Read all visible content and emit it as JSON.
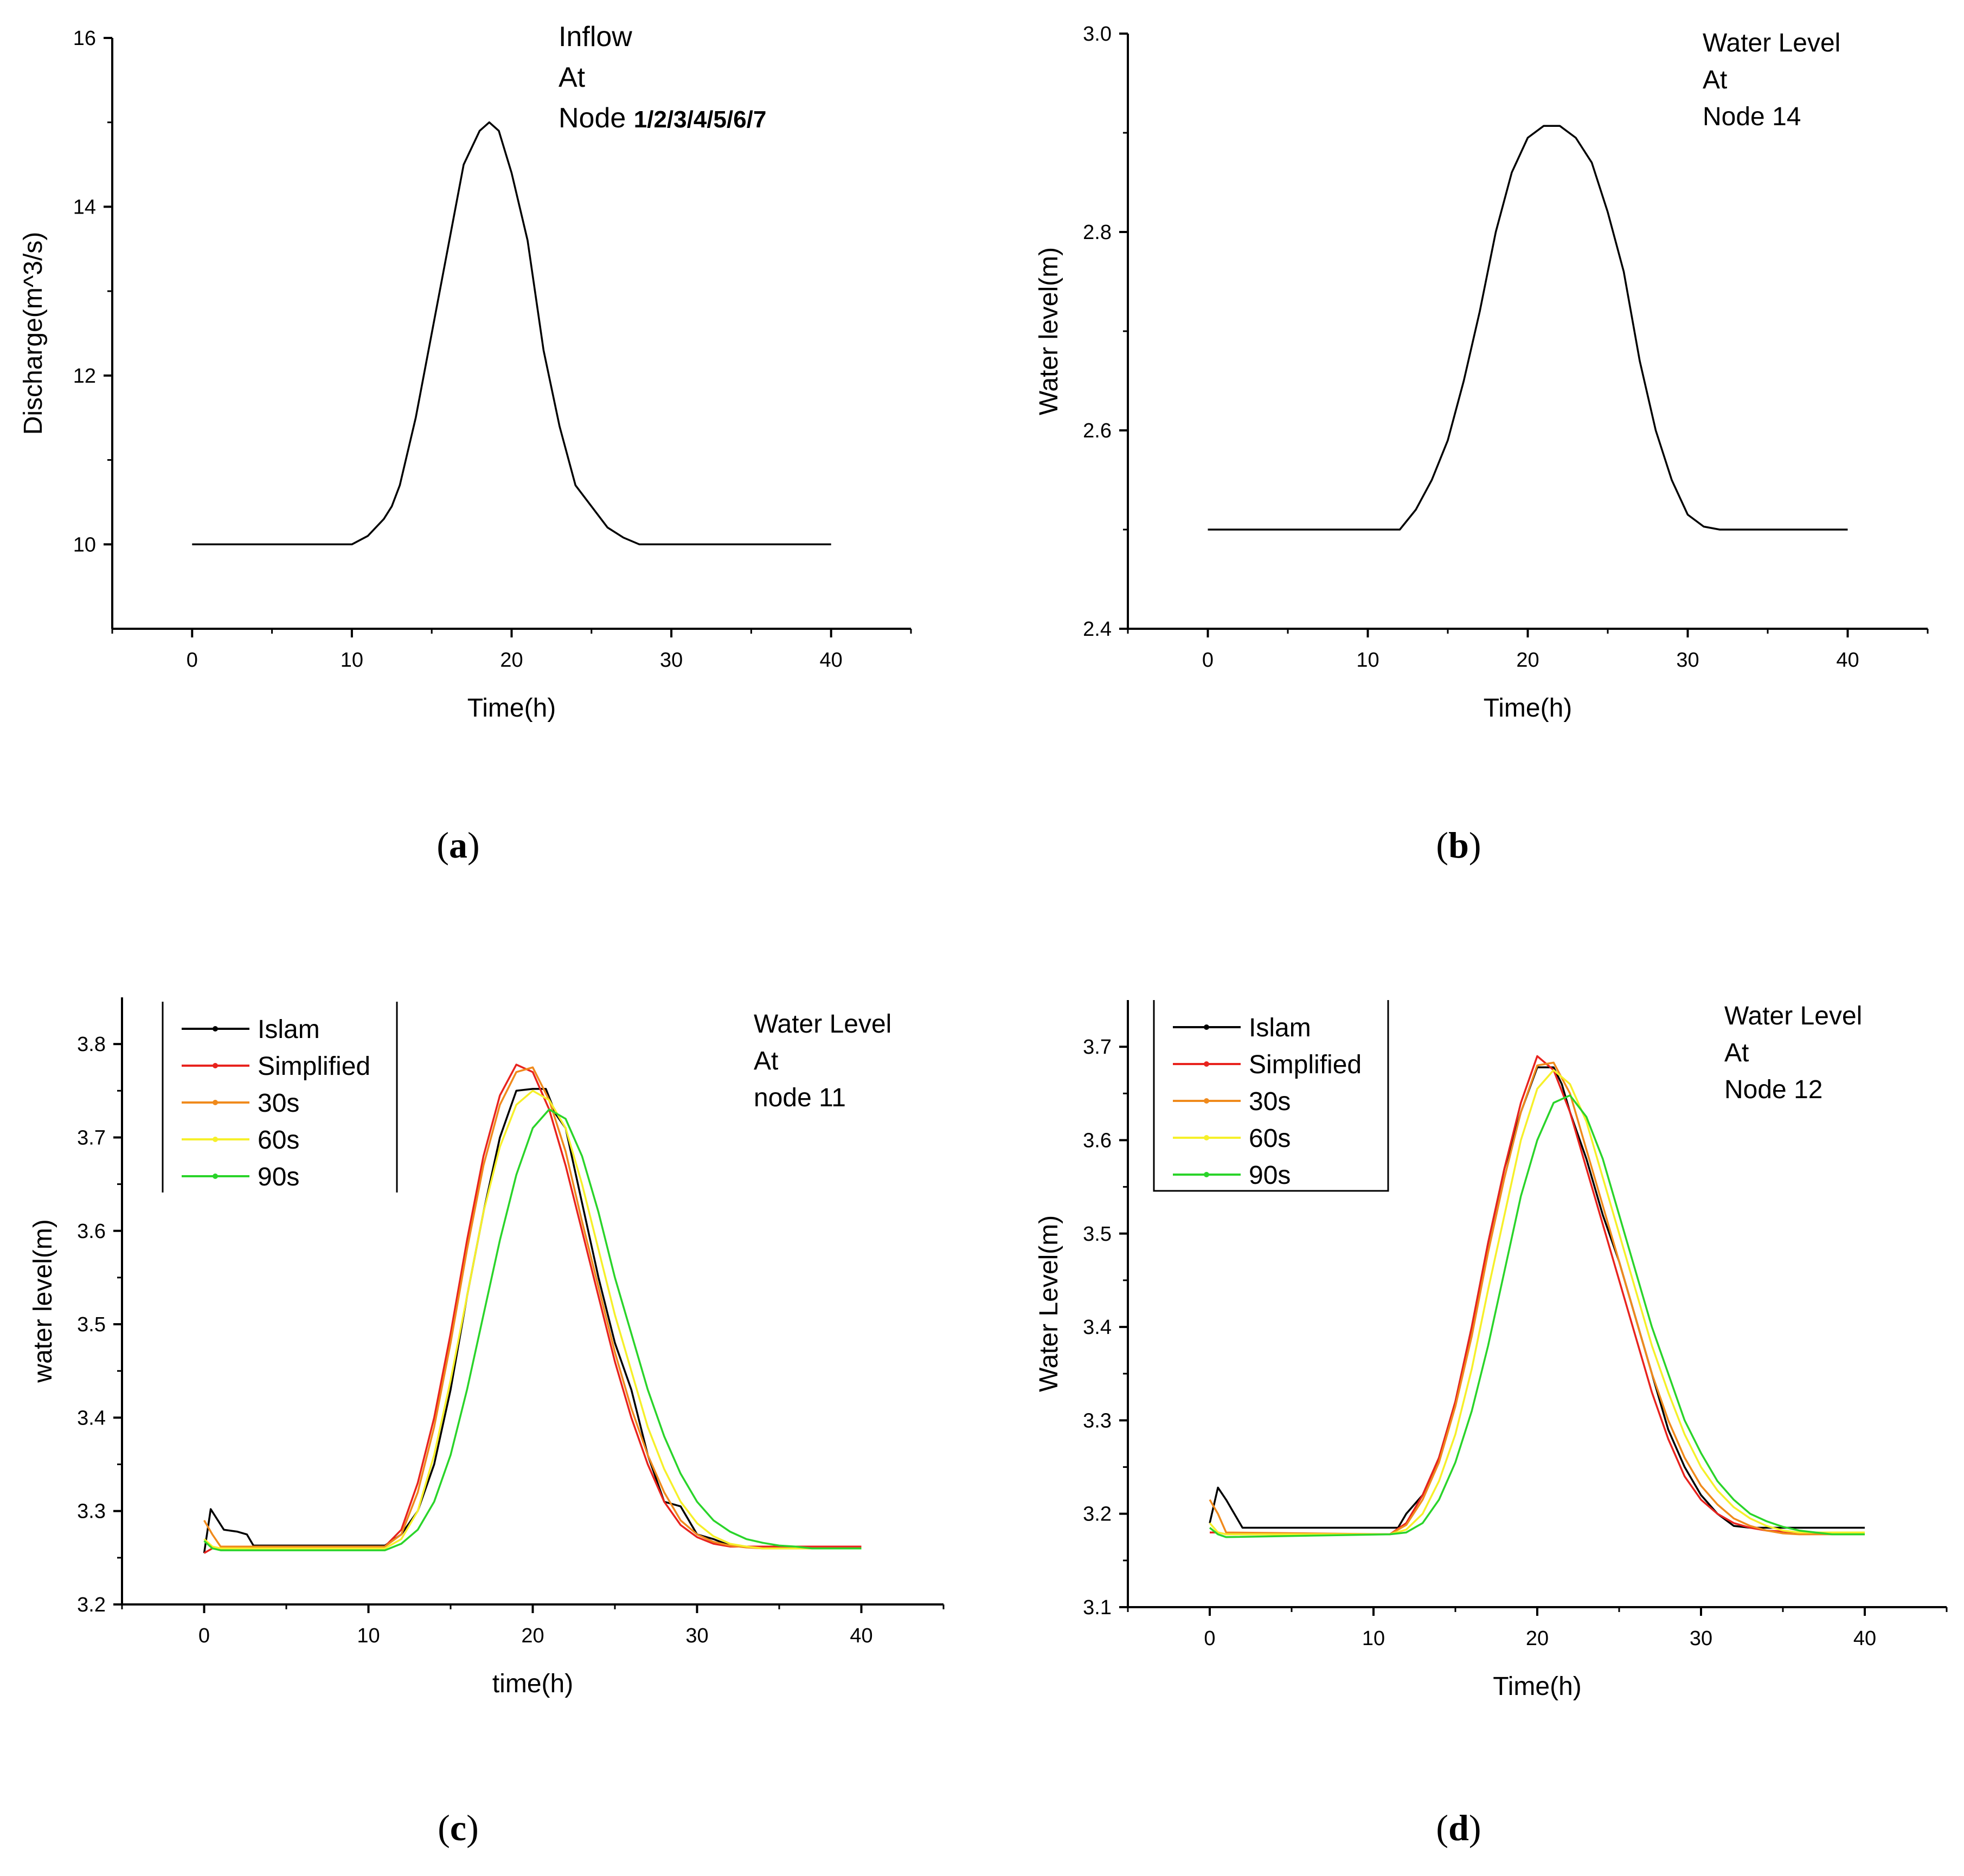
{
  "chart_data": [
    {
      "id": "a",
      "type": "line",
      "caption": "(a)",
      "xlabel": "Time(h)",
      "ylabel": "Discharge(m^3/s)",
      "xlim": [
        -5,
        45
      ],
      "ylim": [
        9,
        16
      ],
      "xticks": [
        0,
        10,
        20,
        30,
        40
      ],
      "yticks": [
        10,
        12,
        14,
        16
      ],
      "annotation": [
        "Inflow",
        "At",
        "Node 1/2/3/4/5/6/7"
      ],
      "legend": null,
      "series": [
        {
          "name": "Inflow",
          "color": "#000000",
          "x": [
            0,
            10,
            11,
            12,
            12.5,
            13,
            14,
            15,
            16,
            17,
            18,
            18.6,
            19.2,
            20,
            21,
            22,
            23,
            24,
            25,
            26,
            27,
            28,
            30,
            40
          ],
          "y": [
            10,
            10,
            10.1,
            10.3,
            10.45,
            10.7,
            11.5,
            12.5,
            13.5,
            14.5,
            14.9,
            15.0,
            14.9,
            14.4,
            13.6,
            12.3,
            11.4,
            10.7,
            10.45,
            10.2,
            10.08,
            10,
            10,
            10
          ]
        }
      ]
    },
    {
      "id": "b",
      "type": "line",
      "caption": "(b)",
      "xlabel": "Time(h)",
      "ylabel": "Water level(m)",
      "xlim": [
        -5,
        45
      ],
      "ylim": [
        2.4,
        3.0
      ],
      "xticks": [
        0,
        10,
        20,
        30,
        40
      ],
      "yticks": [
        2.4,
        2.6,
        2.8,
        3.0
      ],
      "annotation": [
        "Water Level",
        "At",
        "Node 14"
      ],
      "legend": null,
      "series": [
        {
          "name": "Water Level",
          "color": "#000000",
          "x": [
            0,
            12,
            13,
            14,
            15,
            16,
            17,
            18,
            19,
            20,
            21,
            22,
            23,
            24,
            25,
            26,
            27,
            28,
            29,
            30,
            31,
            32,
            40
          ],
          "y": [
            2.5,
            2.5,
            2.52,
            2.55,
            2.59,
            2.65,
            2.72,
            2.8,
            2.86,
            2.895,
            2.907,
            2.907,
            2.895,
            2.87,
            2.82,
            2.76,
            2.67,
            2.6,
            2.55,
            2.515,
            2.503,
            2.5,
            2.5
          ]
        }
      ]
    },
    {
      "id": "c",
      "type": "line",
      "caption": "(c)",
      "xlabel": "time(h)",
      "ylabel": "water level(m)",
      "xlim": [
        -5,
        45
      ],
      "ylim": [
        3.2,
        3.85
      ],
      "xticks": [
        0,
        10,
        20,
        30,
        40
      ],
      "yticks": [
        3.2,
        3.3,
        3.4,
        3.5,
        3.6,
        3.7,
        3.8
      ],
      "annotation": [
        "Water Level",
        "At",
        "node 11"
      ],
      "legend": [
        "Islam",
        "Simplified",
        "30s",
        "60s",
        "90s"
      ],
      "series": [
        {
          "name": "Islam",
          "color": "#000000",
          "x": [
            0,
            0.4,
            1.2,
            2.0,
            2.6,
            3,
            11,
            12,
            13,
            14,
            15,
            16,
            17,
            18,
            19,
            20,
            20.8,
            21.4,
            22,
            23,
            24,
            25,
            26,
            27,
            28,
            29,
            30,
            31,
            32,
            33,
            40
          ],
          "y": [
            3.255,
            3.302,
            3.28,
            3.278,
            3.275,
            3.263,
            3.263,
            3.275,
            3.3,
            3.35,
            3.43,
            3.53,
            3.62,
            3.7,
            3.75,
            3.752,
            3.752,
            3.725,
            3.71,
            3.63,
            3.55,
            3.48,
            3.43,
            3.36,
            3.31,
            3.305,
            3.275,
            3.27,
            3.263,
            3.262,
            3.262
          ]
        },
        {
          "name": "Simplified",
          "color": "#e8231e",
          "x": [
            0,
            0.5,
            1,
            11,
            12,
            13,
            14,
            15,
            16,
            17,
            18,
            19,
            20,
            21,
            22,
            23,
            24,
            25,
            26,
            27,
            28,
            29,
            30,
            31,
            32,
            33,
            35,
            40
          ],
          "y": [
            3.255,
            3.26,
            3.26,
            3.262,
            3.28,
            3.33,
            3.4,
            3.49,
            3.59,
            3.68,
            3.745,
            3.778,
            3.77,
            3.73,
            3.67,
            3.6,
            3.53,
            3.46,
            3.4,
            3.35,
            3.31,
            3.285,
            3.272,
            3.265,
            3.262,
            3.262,
            3.262,
            3.262
          ]
        },
        {
          "name": "30s",
          "color": "#f08a1c",
          "x": [
            0,
            0.5,
            1,
            11,
            12,
            13,
            14,
            15,
            16,
            17,
            18,
            19,
            20,
            21,
            22,
            23,
            24,
            25,
            26,
            27,
            28,
            29,
            30,
            31,
            32,
            33,
            34,
            40
          ],
          "y": [
            3.29,
            3.275,
            3.262,
            3.262,
            3.275,
            3.32,
            3.39,
            3.48,
            3.58,
            3.67,
            3.735,
            3.77,
            3.775,
            3.74,
            3.685,
            3.61,
            3.54,
            3.47,
            3.41,
            3.36,
            3.32,
            3.29,
            3.275,
            3.267,
            3.263,
            3.261,
            3.26,
            3.26
          ]
        },
        {
          "name": "60s",
          "color": "#f6f02a",
          "x": [
            0,
            0.5,
            1,
            11,
            12,
            13,
            14,
            15,
            16,
            17,
            18,
            19,
            20,
            21,
            22,
            23,
            24,
            25,
            26,
            27,
            28,
            29,
            30,
            31,
            32,
            33,
            34,
            35,
            40
          ],
          "y": [
            3.27,
            3.262,
            3.26,
            3.26,
            3.27,
            3.3,
            3.36,
            3.44,
            3.53,
            3.62,
            3.69,
            3.735,
            3.75,
            3.74,
            3.71,
            3.65,
            3.58,
            3.51,
            3.45,
            3.39,
            3.345,
            3.31,
            3.287,
            3.273,
            3.265,
            3.262,
            3.26,
            3.26,
            3.26
          ]
        },
        {
          "name": "90s",
          "color": "#2ad42a",
          "x": [
            0,
            0.5,
            1,
            11,
            12,
            13,
            14,
            15,
            16,
            17,
            18,
            19,
            20,
            21,
            22,
            23,
            24,
            25,
            26,
            27,
            28,
            29,
            30,
            31,
            32,
            33,
            34,
            35,
            36,
            37,
            40
          ],
          "y": [
            3.268,
            3.26,
            3.258,
            3.258,
            3.265,
            3.28,
            3.31,
            3.36,
            3.43,
            3.51,
            3.59,
            3.66,
            3.71,
            3.73,
            3.72,
            3.68,
            3.62,
            3.55,
            3.49,
            3.43,
            3.38,
            3.34,
            3.31,
            3.29,
            3.278,
            3.27,
            3.266,
            3.263,
            3.262,
            3.26,
            3.26
          ]
        }
      ]
    },
    {
      "id": "d",
      "type": "line",
      "caption": "(d)",
      "xlabel": "Time(h)",
      "ylabel": "Water Level(m)",
      "xlim": [
        -5,
        45
      ],
      "ylim": [
        3.1,
        3.75
      ],
      "xticks": [
        0,
        10,
        20,
        30,
        40
      ],
      "yticks": [
        3.1,
        3.2,
        3.3,
        3.4,
        3.5,
        3.6,
        3.7
      ],
      "annotation": [
        "Water Level",
        "At",
        "Node 12"
      ],
      "legend": [
        "Islam",
        "Simplified",
        "30s",
        "60s",
        "90s"
      ],
      "series": [
        {
          "name": "Islam",
          "color": "#000000",
          "x": [
            0,
            0.5,
            1,
            2,
            11.5,
            12,
            13,
            14,
            15,
            16,
            17,
            18,
            19,
            20,
            21,
            21.5,
            22,
            23,
            24,
            25,
            26,
            27,
            28,
            29,
            30,
            31,
            32,
            33,
            40
          ],
          "y": [
            3.19,
            3.228,
            3.215,
            3.185,
            3.185,
            3.2,
            3.22,
            3.26,
            3.32,
            3.4,
            3.49,
            3.57,
            3.63,
            3.678,
            3.678,
            3.66,
            3.63,
            3.58,
            3.52,
            3.47,
            3.41,
            3.35,
            3.29,
            3.25,
            3.22,
            3.2,
            3.187,
            3.185,
            3.185
          ]
        },
        {
          "name": "Simplified",
          "color": "#e8231e",
          "x": [
            0,
            0.5,
            1,
            11,
            12,
            13,
            14,
            15,
            16,
            17,
            18,
            19,
            20,
            21,
            22,
            23,
            24,
            25,
            26,
            27,
            28,
            29,
            30,
            31,
            32,
            33,
            34,
            36,
            38,
            40
          ],
          "y": [
            3.18,
            3.18,
            3.178,
            3.178,
            3.19,
            3.22,
            3.26,
            3.32,
            3.4,
            3.49,
            3.57,
            3.64,
            3.69,
            3.675,
            3.63,
            3.57,
            3.51,
            3.45,
            3.39,
            3.33,
            3.28,
            3.24,
            3.215,
            3.2,
            3.19,
            3.185,
            3.182,
            3.18,
            3.18,
            3.18
          ]
        },
        {
          "name": "30s",
          "color": "#f08a1c",
          "x": [
            0,
            0.5,
            1,
            11,
            12,
            13,
            14,
            15,
            16,
            17,
            18,
            19,
            20,
            21,
            22,
            23,
            24,
            25,
            26,
            27,
            28,
            29,
            30,
            31,
            32,
            33,
            34,
            35,
            36,
            40
          ],
          "y": [
            3.215,
            3.2,
            3.18,
            3.178,
            3.188,
            3.215,
            3.255,
            3.315,
            3.39,
            3.48,
            3.56,
            3.63,
            3.68,
            3.683,
            3.65,
            3.59,
            3.53,
            3.47,
            3.41,
            3.35,
            3.3,
            3.26,
            3.23,
            3.21,
            3.195,
            3.187,
            3.182,
            3.179,
            3.178,
            3.178
          ]
        },
        {
          "name": "60s",
          "color": "#f6f02a",
          "x": [
            0,
            0.5,
            1,
            11,
            12,
            13,
            14,
            15,
            16,
            17,
            18,
            19,
            20,
            21,
            22,
            23,
            24,
            25,
            26,
            27,
            28,
            29,
            30,
            31,
            32,
            33,
            34,
            35,
            36,
            40
          ],
          "y": [
            3.19,
            3.18,
            3.178,
            3.178,
            3.183,
            3.2,
            3.235,
            3.285,
            3.355,
            3.44,
            3.52,
            3.6,
            3.655,
            3.675,
            3.66,
            3.62,
            3.56,
            3.5,
            3.44,
            3.38,
            3.33,
            3.285,
            3.25,
            3.225,
            3.207,
            3.195,
            3.187,
            3.182,
            3.18,
            3.18
          ]
        },
        {
          "name": "90s",
          "color": "#2ad42a",
          "x": [
            0,
            0.5,
            1,
            11,
            12,
            13,
            14,
            15,
            16,
            17,
            18,
            19,
            20,
            21,
            22,
            23,
            24,
            25,
            26,
            27,
            28,
            29,
            30,
            31,
            32,
            33,
            34,
            35,
            36,
            37,
            38,
            40
          ],
          "y": [
            3.185,
            3.178,
            3.175,
            3.178,
            3.18,
            3.19,
            3.215,
            3.255,
            3.31,
            3.38,
            3.46,
            3.54,
            3.6,
            3.64,
            3.648,
            3.625,
            3.58,
            3.52,
            3.46,
            3.4,
            3.35,
            3.3,
            3.265,
            3.235,
            3.215,
            3.2,
            3.192,
            3.186,
            3.182,
            3.18,
            3.178,
            3.178
          ]
        }
      ]
    }
  ]
}
